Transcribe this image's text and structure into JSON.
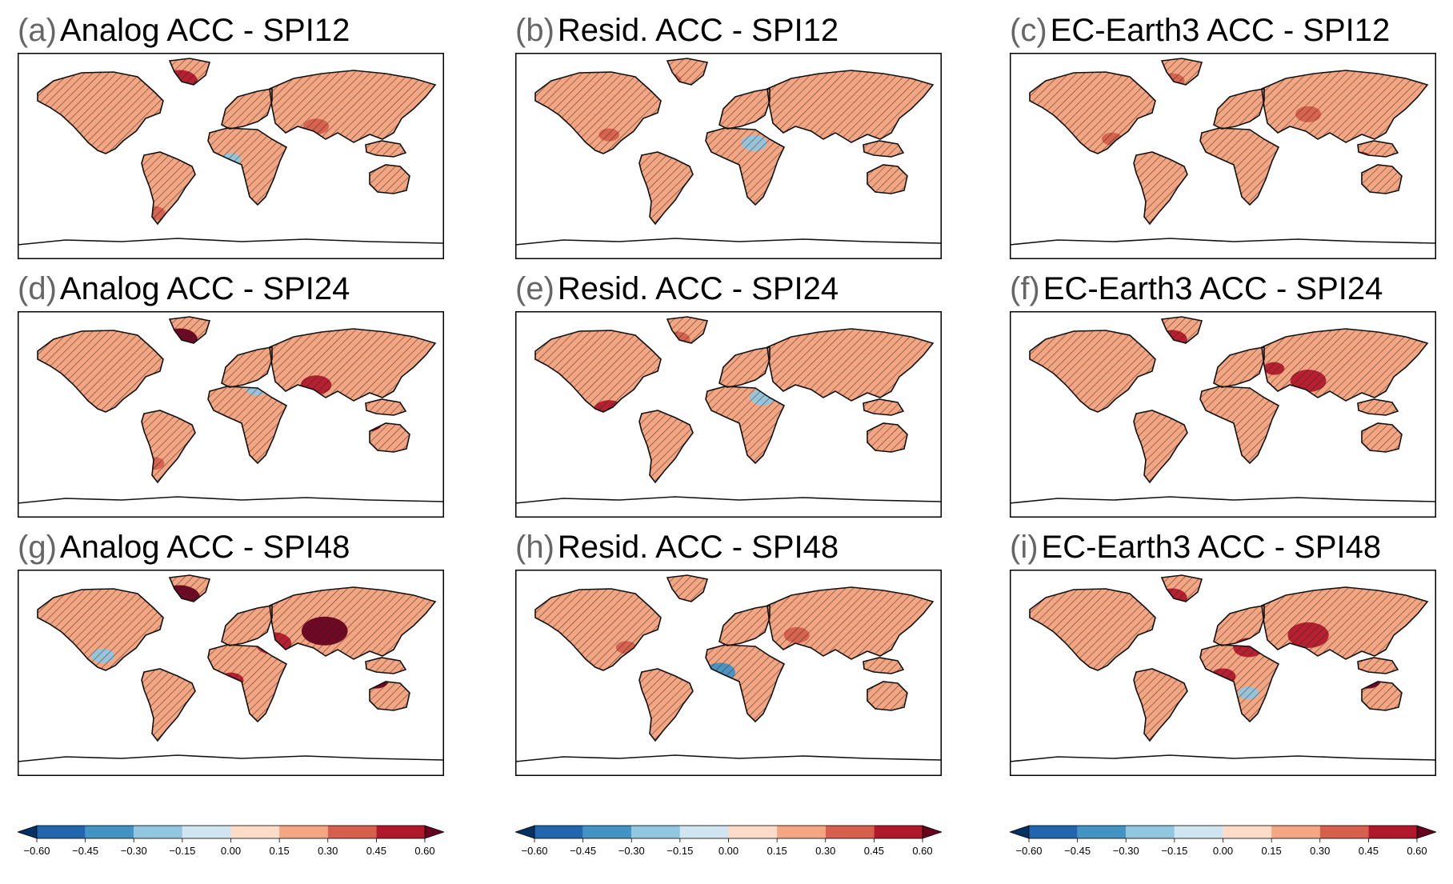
{
  "chart_data": {
    "type": "heatmap",
    "panels": [
      {
        "id": "a",
        "label": "(a)",
        "title": "Analog ACC - SPI12",
        "method": "Analog",
        "index": "SPI12"
      },
      {
        "id": "b",
        "label": "(b)",
        "title": "Resid. ACC - SPI12",
        "method": "Resid.",
        "index": "SPI12"
      },
      {
        "id": "c",
        "label": "(c)",
        "title": "EC-Earth3 ACC - SPI12",
        "method": "EC-Earth3",
        "index": "SPI12"
      },
      {
        "id": "d",
        "label": "(d)",
        "title": "Analog ACC - SPI24",
        "method": "Analog",
        "index": "SPI24"
      },
      {
        "id": "e",
        "label": "(e)",
        "title": "Resid. ACC - SPI24",
        "method": "Resid.",
        "index": "SPI24"
      },
      {
        "id": "f",
        "label": "(f)",
        "title": "EC-Earth3 ACC - SPI24",
        "method": "EC-Earth3",
        "index": "SPI24"
      },
      {
        "id": "g",
        "label": "(g)",
        "title": "Analog ACC - SPI48",
        "method": "Analog",
        "index": "SPI48"
      },
      {
        "id": "h",
        "label": "(h)",
        "title": "Resid. ACC - SPI48",
        "method": "Resid.",
        "index": "SPI48"
      },
      {
        "id": "i",
        "label": "(i)",
        "title": "EC-Earth3 ACC - SPI48",
        "method": "EC-Earth3",
        "index": "SPI48"
      }
    ],
    "colorbar": {
      "levels": [
        -0.6,
        -0.45,
        -0.3,
        -0.15,
        0.0,
        0.15,
        0.3,
        0.45,
        0.6
      ],
      "tick_labels": [
        "−0.60",
        "−0.45",
        "−0.30",
        "−0.15",
        "0.00",
        "0.15",
        "0.30",
        "0.45",
        "0.60"
      ],
      "colors": [
        "#2166ac",
        "#4393c3",
        "#92c5de",
        "#d1e5f0",
        "#fddbc7",
        "#f4a582",
        "#d6604d",
        "#b2182b"
      ],
      "extend_low": "#053061",
      "extend_high": "#67001f",
      "extend": "both"
    },
    "hatching": "diagonal hatching over grid points where the correlation is not significant",
    "projection": "PlateCarree, global"
  }
}
